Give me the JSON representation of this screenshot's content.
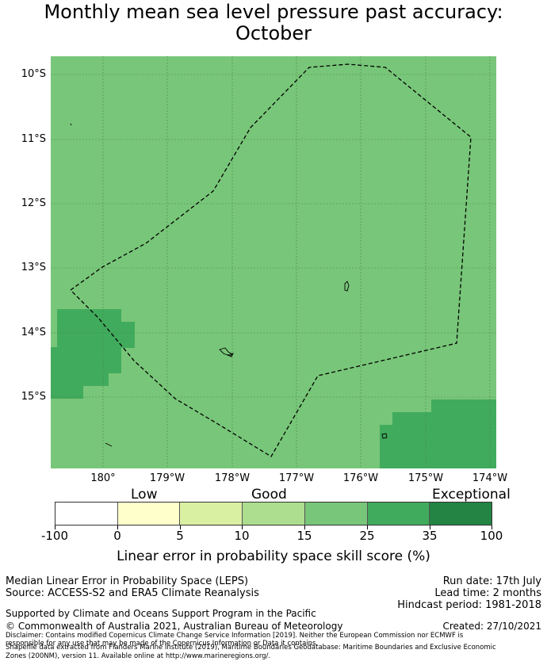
{
  "title_line1": "Monthly mean sea level pressure past accuracy:",
  "title_line2": "October",
  "map": {
    "y_labels": [
      "10°S",
      "11°S",
      "12°S",
      "13°S",
      "14°S",
      "15°S"
    ],
    "x_labels": [
      "180°",
      "179°W",
      "178°W",
      "177°W",
      "176°W",
      "175°W",
      "174°W"
    ],
    "colors": {
      "band_25_35": "#78c679",
      "band_35_100": "#41ab5d",
      "boundary": "#000000"
    }
  },
  "colorbar": {
    "category_low": "Low",
    "category_good": "Good",
    "category_exceptional": "Exceptional",
    "ticks": [
      "-100",
      "0",
      "5",
      "10",
      "15",
      "25",
      "35",
      "100"
    ],
    "colors": [
      "#ffffff",
      "#ffffcc",
      "#d9f0a3",
      "#addd8e",
      "#78c679",
      "#41ab5d",
      "#238443"
    ],
    "title": "Linear error in probability space skill score (%)"
  },
  "info": {
    "method": "Median Linear Error in Probability Space (LEPS)",
    "source": "Source: ACCESS-S2 and ERA5 Climate Reanalysis",
    "run_date": "Run date: 17th July",
    "lead_time": "Lead time: 2 months",
    "hindcast": "Hindcast period: 1981-2018",
    "support": "Supported by Climate and Oceans Support Program in the Pacific",
    "copyright": "© Commonwealth of Australia 2021, Australian Bureau of Meteorology",
    "created": "Created: 27/10/2021",
    "disclaimer1": "Disclaimer: Contains modified Copernicus Climate Change Service Information [2019]. Neither the European Commission nor ECMWF is",
    "disclaimer2": "responsible for any use that may be made of the Copernicus Information or Data it contains.",
    "shapefile1": "Shapefile data extracted from Flanders Marine Institute (2019), Maritime Boundaries Geodatabase: Maritime Boundaries and Exclusive Economic",
    "shapefile2": "Zones (200NM), version 11. Available online at http://www.marineregions.org/."
  }
}
